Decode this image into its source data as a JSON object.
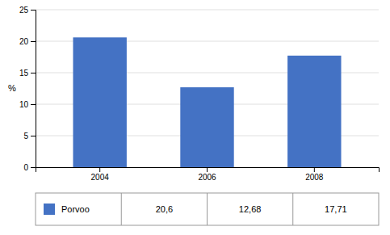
{
  "chart_data": {
    "type": "bar",
    "ylabel": "%",
    "categories": [
      "2004",
      "2006",
      "2008"
    ],
    "series": [
      {
        "name": "Porvoo",
        "color": "#4472C4",
        "values": [
          20.6,
          12.68,
          17.71
        ],
        "value_labels": [
          "20,6",
          "12,68",
          "17,71"
        ]
      }
    ],
    "ylim": [
      0,
      25
    ],
    "yticks": [
      0,
      5,
      10,
      15,
      20,
      25
    ],
    "grid": true,
    "legend": "bottom"
  }
}
